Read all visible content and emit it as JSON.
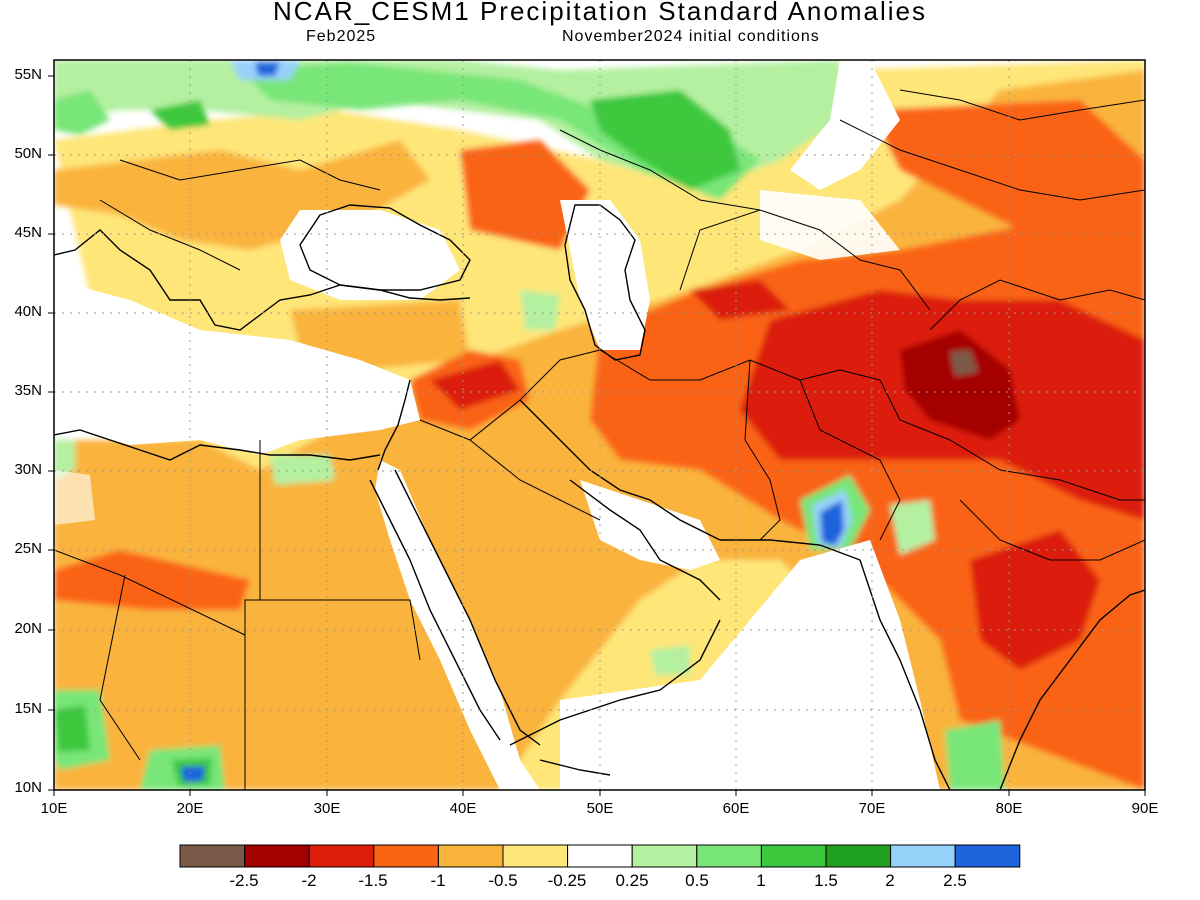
{
  "title": "NCAR_CESM1 Precipitation Standard Anomalies",
  "subtitle_left": "Feb2025",
  "subtitle_right": "November2024 initial conditions",
  "lat_labels": [
    "55N",
    "50N",
    "45N",
    "40N",
    "35N",
    "30N",
    "25N",
    "20N",
    "15N",
    "10N"
  ],
  "lon_labels": [
    "10E",
    "20E",
    "30E",
    "40E",
    "50E",
    "60E",
    "70E",
    "80E",
    "90E"
  ],
  "colorbar": {
    "colors": [
      "#7b5a4a",
      "#a50000",
      "#dc1e0a",
      "#fa6414",
      "#fab43c",
      "#fee678",
      "#ffffff",
      "#b4f0a0",
      "#78e678",
      "#3cc83c",
      "#1ea01e",
      "#96d2fa",
      "#1e64dc"
    ],
    "labels": [
      "-2.5",
      "-2",
      "-1.5",
      "-1",
      "-0.5",
      "-0.25",
      "0.25",
      "0.5",
      "1",
      "1.5",
      "2",
      "2.5"
    ]
  },
  "map_extent": {
    "lon": [
      10,
      90
    ],
    "lat": [
      10,
      56
    ]
  }
}
